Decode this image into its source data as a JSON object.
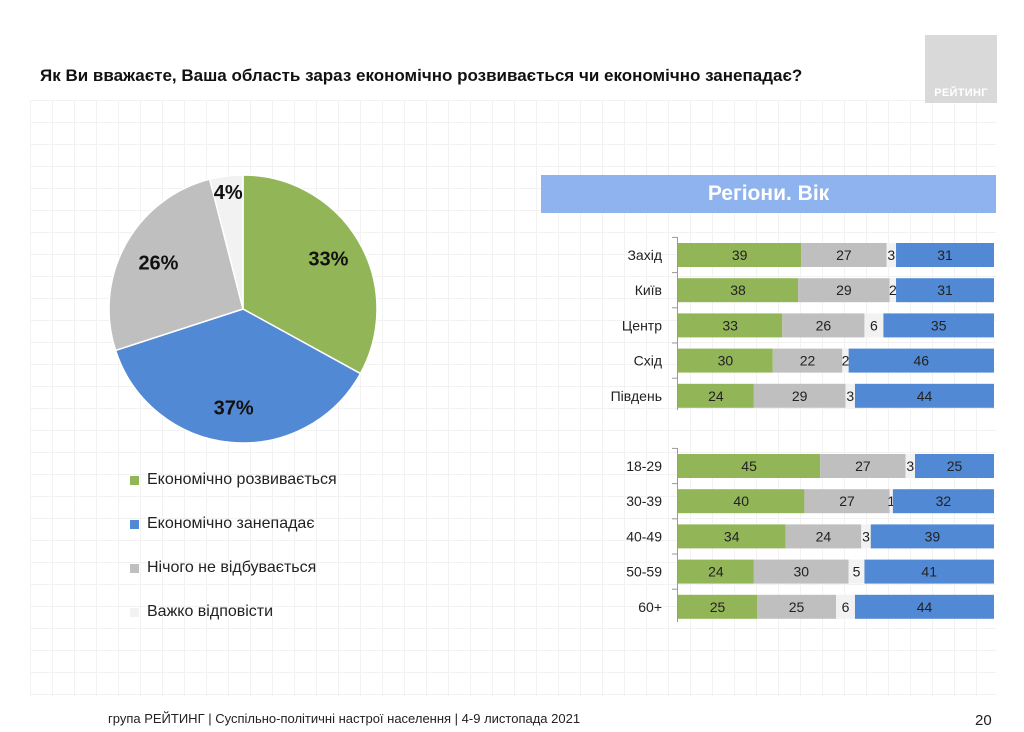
{
  "header": {
    "title": "Як Ви вважаєте, Ваша область зараз економічно розвивається чи економічно занепадає?",
    "logo_text": "РЕЙТИНГ"
  },
  "section_header": "Регіони. Вік",
  "footer": {
    "text": "група РЕЙТИНГ | Суспільно-політичні настрої населення  | 4-9 листопада 2021",
    "page": "20"
  },
  "colors": {
    "develops": "#92b558",
    "declines": "#5189d4",
    "nothing": "#bfbfbf",
    "hard": "#f2f2f2"
  },
  "chart_data": [
    {
      "type": "pie",
      "slices": [
        {
          "name": "Економічно розвивається",
          "value": 33,
          "label": "33%"
        },
        {
          "name": "Економічно занепадає",
          "value": 37,
          "label": "37%"
        },
        {
          "name": "Нічого не відбувається",
          "value": 26,
          "label": "26%"
        },
        {
          "name": "Важко відповісти",
          "value": 4,
          "label": "4%"
        }
      ]
    },
    {
      "type": "bar",
      "orientation": "horizontal",
      "stacked": true,
      "series_order": [
        "Економічно розвивається",
        "Нічого не відбувається",
        "Важко відповісти",
        "Економічно занепадає"
      ],
      "groups": [
        {
          "rows": [
            {
              "label": "Захід",
              "values": [
                39,
                27,
                3,
                31
              ]
            },
            {
              "label": "Київ",
              "values": [
                38,
                29,
                2,
                31
              ]
            },
            {
              "label": "Центр",
              "values": [
                33,
                26,
                6,
                35
              ]
            },
            {
              "label": "Схід",
              "values": [
                30,
                22,
                2,
                46
              ]
            },
            {
              "label": "Південь",
              "values": [
                24,
                29,
                3,
                44
              ]
            }
          ]
        },
        {
          "rows": [
            {
              "label": "18-29",
              "values": [
                45,
                27,
                3,
                25
              ]
            },
            {
              "label": "30-39",
              "values": [
                40,
                27,
                1,
                32
              ]
            },
            {
              "label": "40-49",
              "values": [
                34,
                24,
                3,
                39
              ]
            },
            {
              "label": "50-59",
              "values": [
                24,
                30,
                5,
                41
              ]
            },
            {
              "label": "60+",
              "values": [
                25,
                25,
                6,
                44
              ]
            }
          ]
        }
      ]
    }
  ]
}
